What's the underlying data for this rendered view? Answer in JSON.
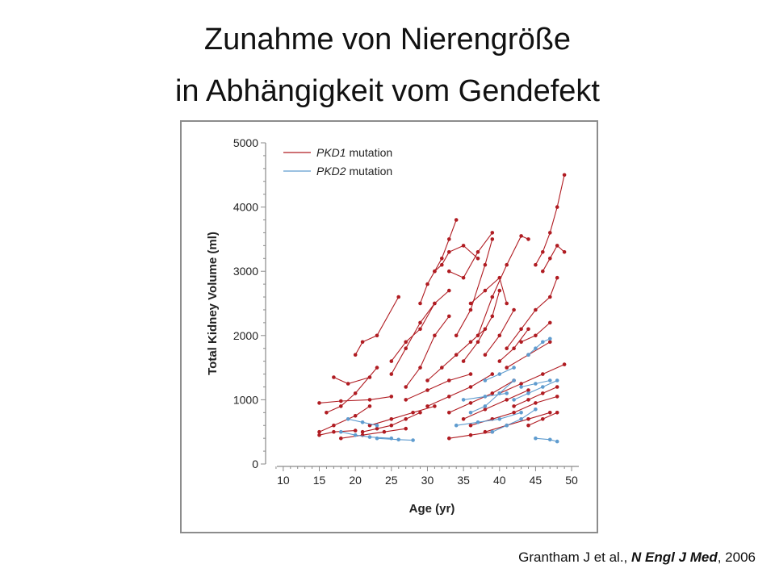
{
  "page": {
    "title_line1": "Zunahme von Nierengröße",
    "title_line2": "in Abhängigkeit vom Gendefekt",
    "citation": {
      "authors": "Grantham J et al., ",
      "journal": "N Engl J Med",
      "year": ", 2006"
    }
  },
  "colors": {
    "pkd1": "#b01c22",
    "pkd2": "#5f9ccf",
    "axis": "#8a8a8a",
    "text": "#222222"
  },
  "chart_data": {
    "type": "line",
    "title": "",
    "xlabel": "Age (yr)",
    "ylabel": "Total Kidney Volume (ml)",
    "xlim": [
      8,
      51
    ],
    "ylim": [
      0,
      5000
    ],
    "xticks": [
      10,
      15,
      20,
      25,
      30,
      35,
      40,
      45,
      50
    ],
    "yticks": [
      0,
      1000,
      2000,
      3000,
      4000,
      5000
    ],
    "grid": false,
    "legend": "top-left",
    "series": [
      {
        "name": "PKD1 mutation",
        "group": "PKD1",
        "x": [
          15,
          17,
          20,
          22
        ],
        "y": [
          500,
          600,
          750,
          900
        ]
      },
      {
        "name": "PKD1 mutation",
        "group": "PKD1",
        "x": [
          16,
          18,
          20,
          23
        ],
        "y": [
          800,
          900,
          1100,
          1500
        ]
      },
      {
        "name": "PKD1 mutation",
        "group": "PKD1",
        "x": [
          20,
          21,
          23,
          26
        ],
        "y": [
          1700,
          1900,
          2000,
          2600
        ]
      },
      {
        "name": "PKD1 mutation",
        "group": "PKD1",
        "x": [
          17,
          19,
          22
        ],
        "y": [
          1350,
          1250,
          1350
        ]
      },
      {
        "name": "PKD1 mutation",
        "group": "PKD1",
        "x": [
          15,
          18,
          22,
          25
        ],
        "y": [
          950,
          980,
          1000,
          1050
        ]
      },
      {
        "name": "PKD1 mutation",
        "group": "PKD1",
        "x": [
          15,
          17,
          20
        ],
        "y": [
          450,
          500,
          520
        ]
      },
      {
        "name": "PKD1 mutation",
        "group": "PKD1",
        "x": [
          21,
          23,
          25,
          27,
          29
        ],
        "y": [
          500,
          550,
          600,
          700,
          800
        ]
      },
      {
        "name": "PKD1 mutation",
        "group": "PKD1",
        "x": [
          25,
          27,
          29,
          31,
          33
        ],
        "y": [
          1600,
          1900,
          2100,
          2500,
          2700
        ]
      },
      {
        "name": "PKD1 mutation",
        "group": "PKD1",
        "x": [
          25,
          27,
          29,
          31
        ],
        "y": [
          1400,
          1800,
          2200,
          2500
        ]
      },
      {
        "name": "PKD1 mutation",
        "group": "PKD1",
        "x": [
          27,
          29,
          31,
          33
        ],
        "y": [
          1200,
          1500,
          2000,
          2300
        ]
      },
      {
        "name": "PKD1 mutation",
        "group": "PKD1",
        "x": [
          29,
          30,
          31,
          32,
          33,
          34
        ],
        "y": [
          2500,
          2800,
          3000,
          3200,
          3500,
          3800
        ]
      },
      {
        "name": "PKD1 mutation",
        "group": "PKD1",
        "x": [
          31,
          32,
          33,
          35,
          37
        ],
        "y": [
          3000,
          3100,
          3300,
          3400,
          3200
        ]
      },
      {
        "name": "PKD1 mutation",
        "group": "PKD1",
        "x": [
          33,
          35,
          37,
          39
        ],
        "y": [
          3000,
          2900,
          3300,
          3600
        ]
      },
      {
        "name": "PKD1 mutation",
        "group": "PKD1",
        "x": [
          34,
          36,
          38,
          39
        ],
        "y": [
          2000,
          2400,
          3100,
          3500
        ]
      },
      {
        "name": "PKD1 mutation",
        "group": "PKD1",
        "x": [
          35,
          37,
          39,
          40
        ],
        "y": [
          1600,
          1900,
          2300,
          2700
        ]
      },
      {
        "name": "PKD1 mutation",
        "group": "PKD1",
        "x": [
          36,
          38,
          40,
          41
        ],
        "y": [
          2500,
          2700,
          2900,
          2500
        ]
      },
      {
        "name": "PKD1 mutation",
        "group": "PKD1",
        "x": [
          37,
          39,
          41,
          43,
          44
        ],
        "y": [
          2000,
          2600,
          3100,
          3550,
          3500
        ]
      },
      {
        "name": "PKD1 mutation",
        "group": "PKD1",
        "x": [
          38,
          40,
          42
        ],
        "y": [
          1700,
          2000,
          2400
        ]
      },
      {
        "name": "PKD1 mutation",
        "group": "PKD1",
        "x": [
          40,
          42,
          44
        ],
        "y": [
          1600,
          1800,
          2100
        ]
      },
      {
        "name": "PKD1 mutation",
        "group": "PKD1",
        "x": [
          41,
          43,
          45,
          47,
          48
        ],
        "y": [
          1800,
          2100,
          2400,
          2600,
          2900
        ]
      },
      {
        "name": "PKD1 mutation",
        "group": "PKD1",
        "x": [
          45,
          46,
          47,
          48,
          49
        ],
        "y": [
          3100,
          3300,
          3600,
          4000,
          4500
        ]
      },
      {
        "name": "PKD1 mutation",
        "group": "PKD1",
        "x": [
          46,
          47,
          48,
          49
        ],
        "y": [
          3000,
          3200,
          3400,
          3300
        ]
      },
      {
        "name": "PKD1 mutation",
        "group": "PKD1",
        "x": [
          43,
          45,
          47
        ],
        "y": [
          1900,
          2000,
          2200
        ]
      },
      {
        "name": "PKD1 mutation",
        "group": "PKD1",
        "x": [
          30,
          32,
          34,
          36,
          38
        ],
        "y": [
          1300,
          1500,
          1700,
          1900,
          2100
        ]
      },
      {
        "name": "PKD1 mutation",
        "group": "PKD1",
        "x": [
          27,
          30,
          33,
          36
        ],
        "y": [
          1000,
          1150,
          1300,
          1400
        ]
      },
      {
        "name": "PKD1 mutation",
        "group": "PKD1",
        "x": [
          30,
          33,
          36,
          39
        ],
        "y": [
          900,
          1050,
          1200,
          1400
        ]
      },
      {
        "name": "PKD1 mutation",
        "group": "PKD1",
        "x": [
          33,
          36,
          39,
          42
        ],
        "y": [
          800,
          950,
          1100,
          1300
        ]
      },
      {
        "name": "PKD1 mutation",
        "group": "PKD1",
        "x": [
          35,
          38,
          41,
          44
        ],
        "y": [
          700,
          850,
          1000,
          1150
        ]
      },
      {
        "name": "PKD1 mutation",
        "group": "PKD1",
        "x": [
          36,
          39,
          42,
          45,
          48
        ],
        "y": [
          600,
          700,
          800,
          950,
          1050
        ]
      },
      {
        "name": "PKD1 mutation",
        "group": "PKD1",
        "x": [
          38,
          41,
          44,
          47
        ],
        "y": [
          500,
          600,
          700,
          800
        ]
      },
      {
        "name": "PKD1 mutation",
        "group": "PKD1",
        "x": [
          40,
          43,
          46,
          49
        ],
        "y": [
          1100,
          1250,
          1400,
          1550
        ]
      },
      {
        "name": "PKD1 mutation",
        "group": "PKD1",
        "x": [
          41,
          44,
          47
        ],
        "y": [
          1500,
          1700,
          1900
        ]
      },
      {
        "name": "PKD1 mutation",
        "group": "PKD1",
        "x": [
          33,
          36,
          39
        ],
        "y": [
          400,
          450,
          500
        ]
      },
      {
        "name": "PKD1 mutation",
        "group": "PKD1",
        "x": [
          22,
          25,
          28,
          31
        ],
        "y": [
          600,
          700,
          800,
          900
        ]
      },
      {
        "name": "PKD1 mutation",
        "group": "PKD1",
        "x": [
          18,
          21,
          24,
          27
        ],
        "y": [
          400,
          450,
          500,
          550
        ]
      },
      {
        "name": "PKD1 mutation",
        "group": "PKD1",
        "x": [
          42,
          44,
          46,
          48
        ],
        "y": [
          900,
          1000,
          1100,
          1200
        ]
      },
      {
        "name": "PKD1 mutation",
        "group": "PKD1",
        "x": [
          44,
          46,
          48
        ],
        "y": [
          600,
          700,
          800
        ]
      },
      {
        "name": "PKD2 mutation",
        "group": "PKD2",
        "x": [
          18,
          20,
          22,
          25
        ],
        "y": [
          500,
          450,
          420,
          400
        ]
      },
      {
        "name": "PKD2 mutation",
        "group": "PKD2",
        "x": [
          19,
          21,
          23
        ],
        "y": [
          700,
          650,
          600
        ]
      },
      {
        "name": "PKD2 mutation",
        "group": "PKD2",
        "x": [
          23,
          26,
          28
        ],
        "y": [
          400,
          380,
          370
        ]
      },
      {
        "name": "PKD2 mutation",
        "group": "PKD2",
        "x": [
          34,
          37,
          40,
          43
        ],
        "y": [
          600,
          650,
          700,
          800
        ]
      },
      {
        "name": "PKD2 mutation",
        "group": "PKD2",
        "x": [
          36,
          38,
          40,
          42
        ],
        "y": [
          800,
          900,
          1100,
          1300
        ]
      },
      {
        "name": "PKD2 mutation",
        "group": "PKD2",
        "x": [
          38,
          40,
          42
        ],
        "y": [
          1300,
          1400,
          1500
        ]
      },
      {
        "name": "PKD2 mutation",
        "group": "PKD2",
        "x": [
          39,
          41,
          43,
          45
        ],
        "y": [
          500,
          600,
          700,
          850
        ]
      },
      {
        "name": "PKD2 mutation",
        "group": "PKD2",
        "x": [
          42,
          44,
          46,
          48
        ],
        "y": [
          1000,
          1100,
          1200,
          1300
        ]
      },
      {
        "name": "PKD2 mutation",
        "group": "PKD2",
        "x": [
          44,
          45,
          46,
          47
        ],
        "y": [
          1700,
          1800,
          1900,
          1950
        ]
      },
      {
        "name": "PKD2 mutation",
        "group": "PKD2",
        "x": [
          45,
          47,
          48
        ],
        "y": [
          400,
          380,
          350
        ]
      },
      {
        "name": "PKD2 mutation",
        "group": "PKD2",
        "x": [
          43,
          45,
          47
        ],
        "y": [
          1200,
          1250,
          1300
        ]
      },
      {
        "name": "PKD2 mutation",
        "group": "PKD2",
        "x": [
          35,
          38,
          41
        ],
        "y": [
          1000,
          1050,
          1100
        ]
      }
    ]
  }
}
